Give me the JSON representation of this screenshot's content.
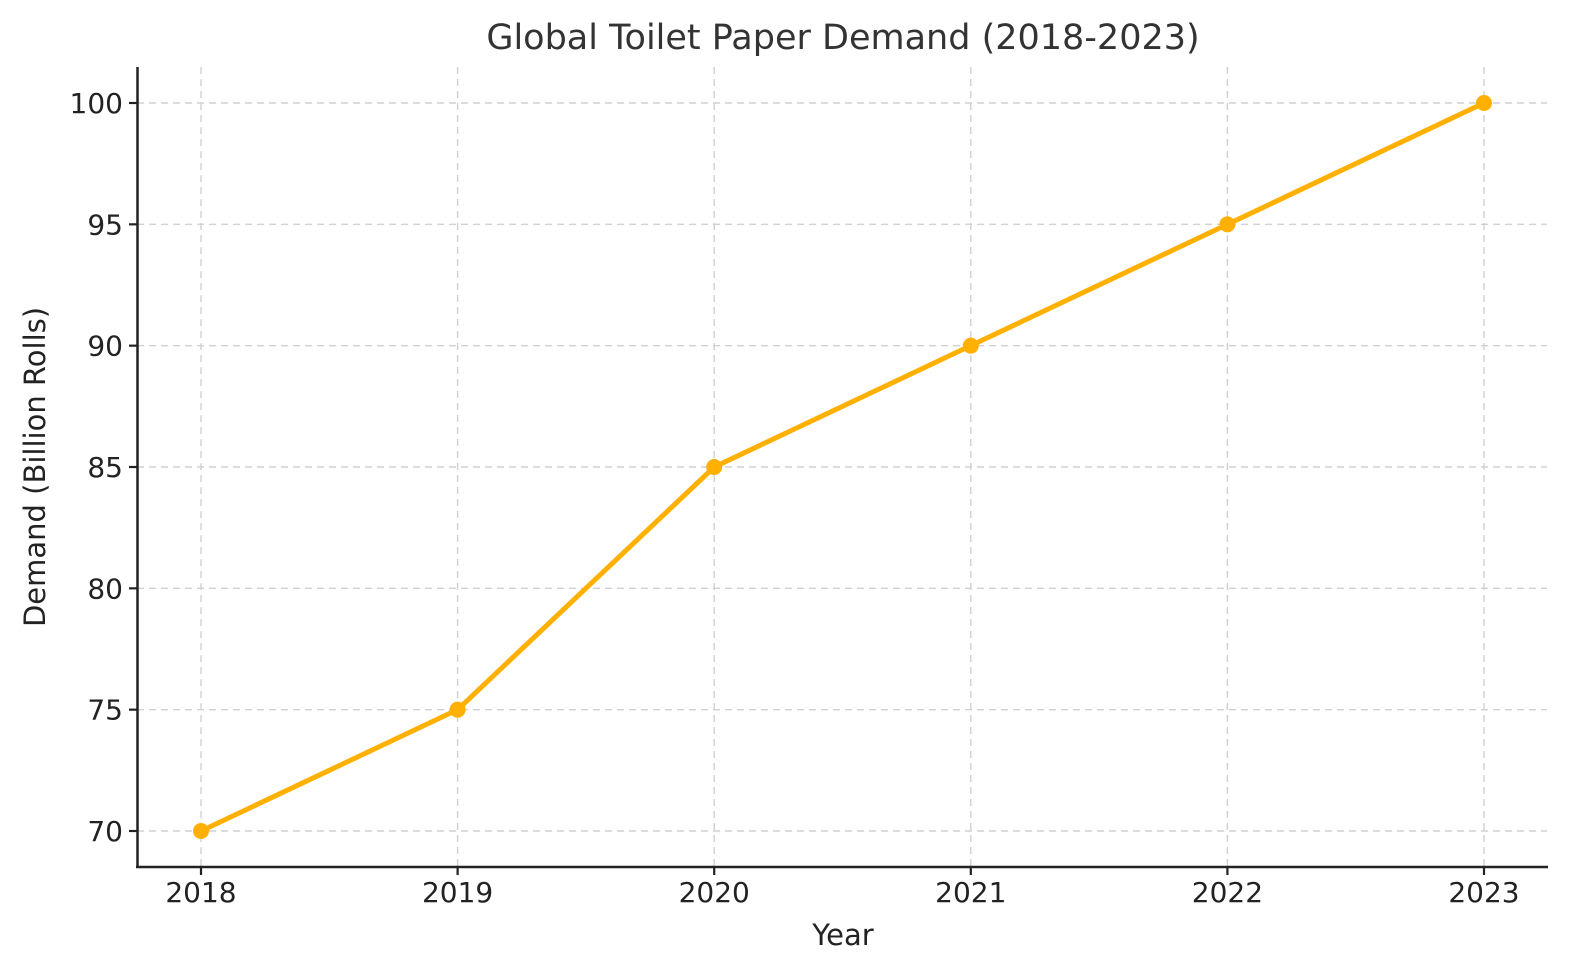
{
  "chart_data": {
    "type": "line",
    "title": "Global Toilet Paper Demand (2018-2023)",
    "xlabel": "Year",
    "ylabel": "Demand (Billion Rolls)",
    "categories": [
      "2018",
      "2019",
      "2020",
      "2021",
      "2022",
      "2023"
    ],
    "series": [
      {
        "name": "Demand",
        "values": [
          70,
          75,
          85,
          90,
          95,
          100
        ],
        "color": "#FFB000",
        "marker": "circle"
      }
    ],
    "yticks": [
      70,
      75,
      80,
      85,
      90,
      95,
      100
    ],
    "ylim": [
      68.5,
      101.5
    ],
    "grid": true,
    "grid_style": "dashed",
    "legend": null
  }
}
